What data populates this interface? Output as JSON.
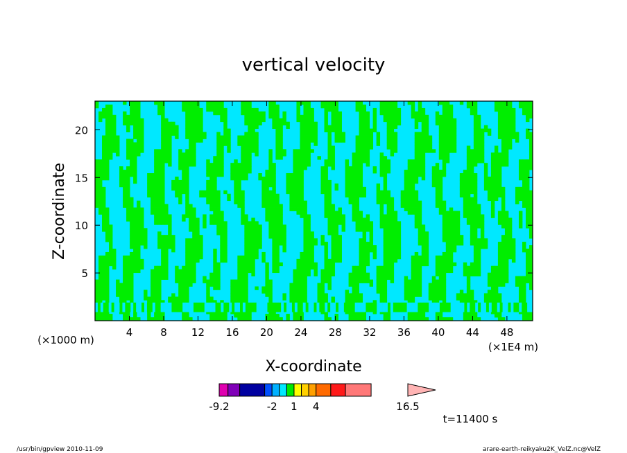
{
  "chart_data": {
    "type": "heatmap",
    "title": "vertical velocity",
    "xlabel": "X-coordinate",
    "ylabel": "Z-coordinate",
    "x_units": "(×1E4 m)",
    "y_units": "(×1000 m)",
    "xlim": [
      0,
      51
    ],
    "ylim": [
      0,
      23
    ],
    "xticks": [
      4,
      8,
      12,
      16,
      20,
      24,
      28,
      32,
      36,
      40,
      44,
      48
    ],
    "yticks": [
      5,
      10,
      15,
      20
    ],
    "colorbar": {
      "levels": [
        -9.2,
        -8.0,
        -6.4,
        -3.0,
        -2.0,
        -1.0,
        0.0,
        1.0,
        2.0,
        3.0,
        4.0,
        6.0,
        8.0,
        11.5,
        16.5
      ],
      "colors": [
        "#e000b0",
        "#8000b8",
        "#0000a0",
        "#0050ff",
        "#00b0ff",
        "#00e8ff",
        "#00e800",
        "#ffff00",
        "#ffd000",
        "#ffa000",
        "#ff6a00",
        "#ff1a1a",
        "#ff7878",
        "#ffb4b4"
      ],
      "tick_labels": [
        "-9.2",
        "-2",
        "1",
        "4",
        "16.5"
      ],
      "tick_values": [
        -9.2,
        -2,
        1,
        4,
        16.5
      ]
    },
    "dominant_fill": {
      "positive": "#00ee00",
      "negative": "#00e8ff"
    },
    "time_label": "t=11400 s"
  },
  "footer": {
    "left": "/usr/bin/gpview   2010-11-09",
    "right": "arare-earth-reikyaku2K_VelZ.nc@VelZ"
  }
}
